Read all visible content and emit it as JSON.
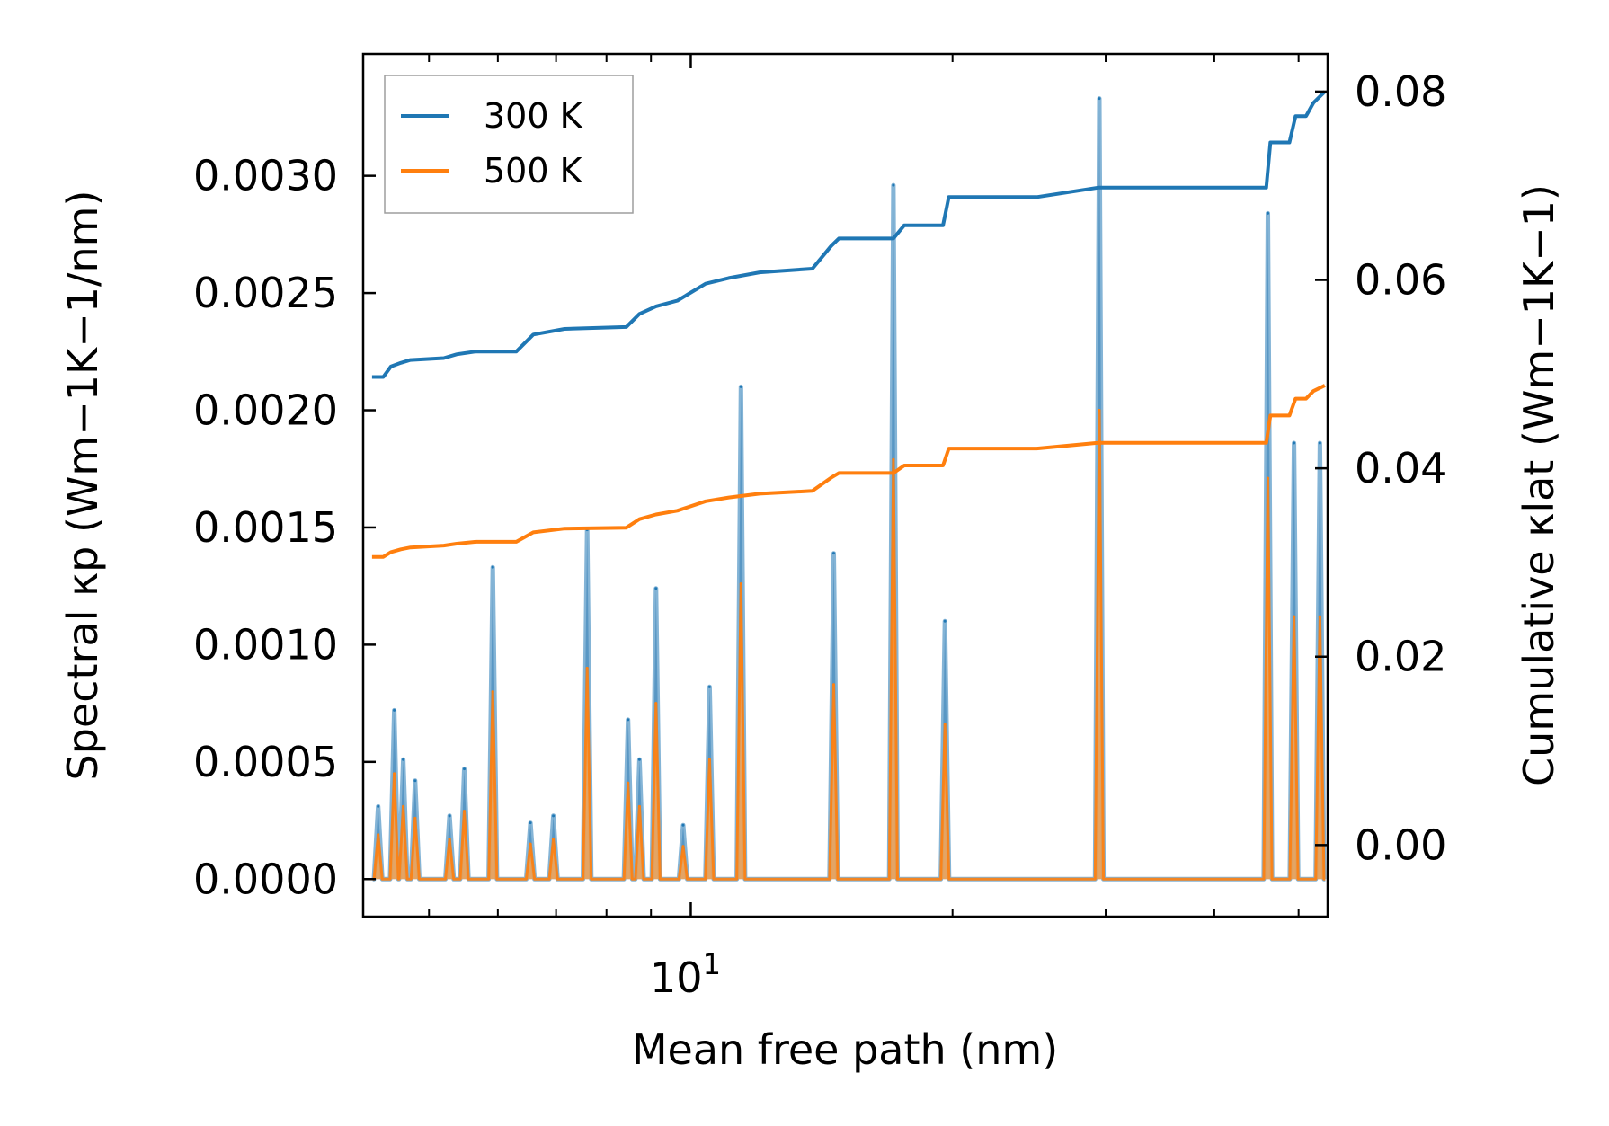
{
  "chart_data": {
    "type": "line",
    "x_scale": "log",
    "xlabel": "Mean free path (nm)",
    "ylabel_left": "Spectral κp (Wm−1K−1/nm)",
    "ylabel_right": "Cumulative κlat (Wm−1K−1)",
    "xlim": [
      4.2,
      54
    ],
    "ylim_left": [
      -0.00016,
      0.00352
    ],
    "ylim_right": [
      -0.0076,
      0.084
    ],
    "x_ticks": [
      {
        "value": 10,
        "label": "10",
        "exponent": "1"
      }
    ],
    "x_minor_ticks": [
      4,
      5,
      6,
      7,
      8,
      9,
      20,
      30,
      40,
      50
    ],
    "y_ticks_left": [
      {
        "value": 0.0,
        "label": "0.0000"
      },
      {
        "value": 0.0005,
        "label": "0.0005"
      },
      {
        "value": 0.001,
        "label": "0.0010"
      },
      {
        "value": 0.0015,
        "label": "0.0015"
      },
      {
        "value": 0.002,
        "label": "0.0020"
      },
      {
        "value": 0.0025,
        "label": "0.0025"
      },
      {
        "value": 0.003,
        "label": "0.0030"
      }
    ],
    "y_ticks_right": [
      {
        "value": 0.0,
        "label": "0.00"
      },
      {
        "value": 0.02,
        "label": "0.02"
      },
      {
        "value": 0.04,
        "label": "0.04"
      },
      {
        "value": 0.06,
        "label": "0.06"
      },
      {
        "value": 0.08,
        "label": "0.08"
      }
    ],
    "legend": {
      "position": "top-left",
      "entries": [
        "300 K",
        "500 K"
      ]
    },
    "colors": {
      "300 K": "#1f77b4",
      "500 K": "#ff7f0e",
      "fill_300": "#7fa8c9",
      "fill_500": "#f0a050"
    },
    "spectral": {
      "x": [
        4.37,
        4.56,
        4.67,
        4.82,
        5.28,
        5.49,
        5.92,
        6.54,
        6.95,
        7.6,
        8.47,
        8.73,
        9.12,
        9.8,
        10.51,
        11.42,
        14.6,
        17.1,
        19.6,
        29.5,
        46.1,
        49.4,
        52.9
      ],
      "peaks_300": [
        0.00031,
        0.00072,
        0.00051,
        0.00042,
        0.00027,
        0.00047,
        0.00133,
        0.00024,
        0.00027,
        0.00149,
        0.00068,
        0.00051,
        0.00124,
        0.00023,
        0.00082,
        0.0021,
        0.00139,
        0.00296,
        0.0011,
        0.00333,
        0.00284,
        0.00186,
        0.00186
      ],
      "peaks_500": [
        0.00019,
        0.00045,
        0.00031,
        0.00026,
        0.00017,
        0.00029,
        0.0008,
        0.00015,
        0.00017,
        0.0009,
        0.00041,
        0.00031,
        0.00075,
        0.00014,
        0.00051,
        0.00126,
        0.00083,
        0.00179,
        0.00066,
        0.002,
        0.00171,
        0.00112,
        0.00112
      ]
    },
    "cumulative": {
      "x": [
        4.3,
        4.43,
        4.52,
        4.64,
        4.76,
        5.2,
        5.38,
        5.66,
        6.3,
        6.59,
        7.16,
        8.43,
        8.73,
        9.12,
        9.65,
        10.4,
        11.06,
        12.0,
        13.8,
        14.5,
        14.8,
        17.1,
        17.6,
        19.5,
        19.8,
        25.0,
        29.4,
        29.8,
        40.0,
        45.9,
        46.4,
        48.8,
        49.6,
        51.0,
        52.0,
        53.6
      ],
      "values_300": [
        0.0497,
        0.0497,
        0.0508,
        0.0512,
        0.0515,
        0.0517,
        0.0521,
        0.0524,
        0.0524,
        0.0542,
        0.0548,
        0.055,
        0.0564,
        0.0572,
        0.0578,
        0.0596,
        0.0602,
        0.0608,
        0.0612,
        0.0636,
        0.0644,
        0.0644,
        0.0658,
        0.0658,
        0.0688,
        0.0688,
        0.0698,
        0.0698,
        0.0698,
        0.0698,
        0.0746,
        0.0746,
        0.0774,
        0.0774,
        0.0788,
        0.08
      ],
      "values_500": [
        0.0306,
        0.0306,
        0.0311,
        0.0314,
        0.0316,
        0.0318,
        0.032,
        0.0322,
        0.0322,
        0.0332,
        0.0336,
        0.0337,
        0.0346,
        0.0351,
        0.0355,
        0.0365,
        0.0369,
        0.0373,
        0.0376,
        0.039,
        0.0395,
        0.0395,
        0.0403,
        0.0403,
        0.0421,
        0.0421,
        0.0427,
        0.0427,
        0.0427,
        0.0427,
        0.0456,
        0.0456,
        0.0474,
        0.0474,
        0.0482,
        0.0488
      ]
    }
  }
}
